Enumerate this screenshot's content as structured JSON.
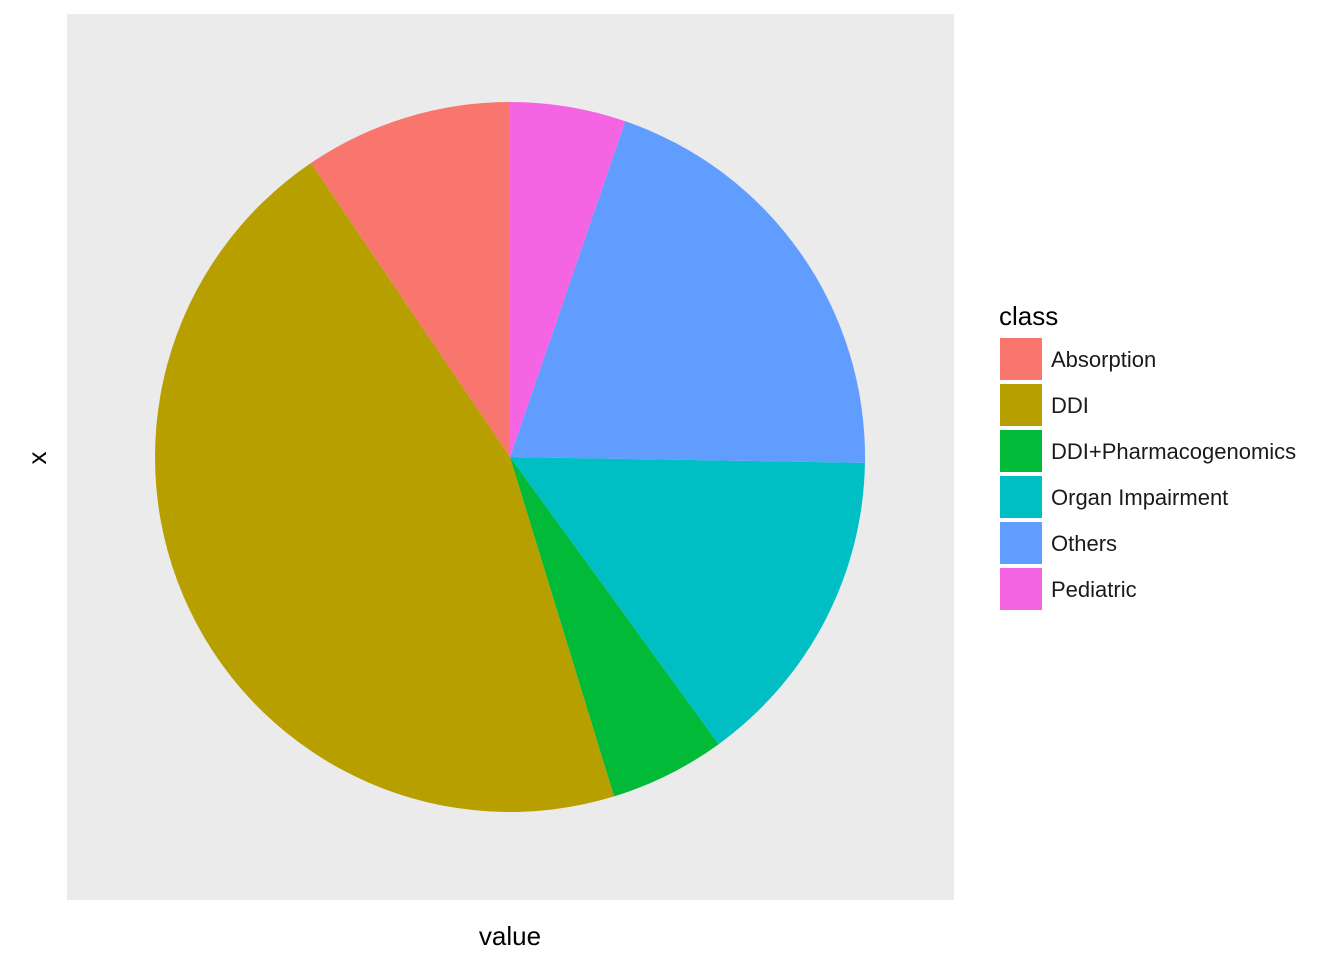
{
  "chart_data": {
    "type": "pie",
    "xlabel": "value",
    "ylabel": "x",
    "legend_title": "class",
    "legend_position": "right",
    "start_angle": "top",
    "direction": "clockwise",
    "categories": [
      "Absorption",
      "DDI",
      "DDI+Pharmacogenomics",
      "Organ Impairment",
      "Others",
      "Pediatric"
    ],
    "values": [
      9,
      43,
      5,
      14,
      19,
      5
    ],
    "colors": [
      "#F8766D",
      "#B79F00",
      "#00BA38",
      "#00BFC4",
      "#619CFF",
      "#F564E3"
    ],
    "draw_order_counterclockwise_from_top": [
      "Absorption",
      "DDI",
      "DDI+Pharmacogenomics",
      "Organ Impairment",
      "Others",
      "Pediatric"
    ],
    "panel_background": "#EBEBEB"
  }
}
